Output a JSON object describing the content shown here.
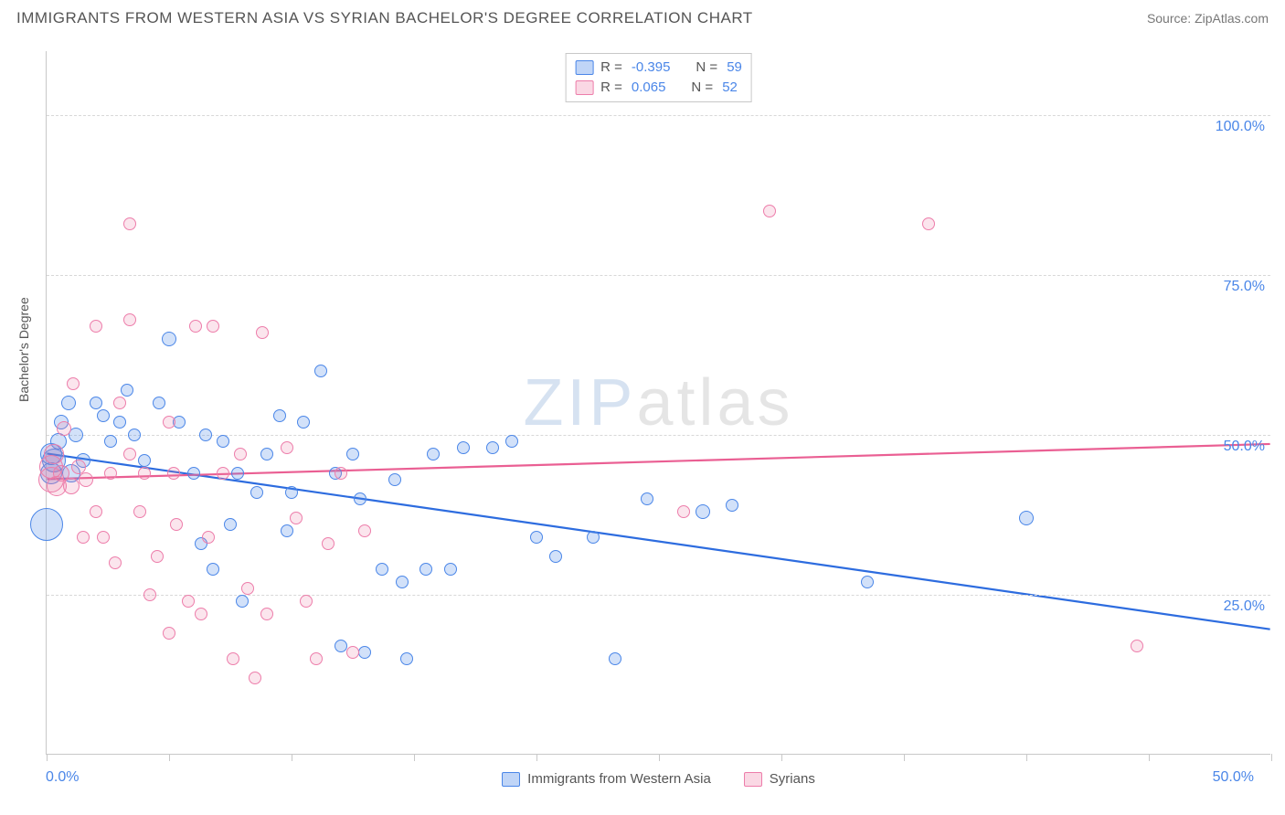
{
  "title": "IMMIGRANTS FROM WESTERN ASIA VS SYRIAN BACHELOR'S DEGREE CORRELATION CHART",
  "source": "Source: ZipAtlas.com",
  "watermark_a": "ZIP",
  "watermark_b": "atlas",
  "chart": {
    "type": "scatter-with-trend",
    "background_color": "#ffffff",
    "grid_color": "#d8d8d8",
    "axis_color": "#c8c8c8",
    "tick_label_color": "#4a86e8",
    "tick_label_fontsize": 16,
    "y_axis_label": "Bachelor's Degree",
    "y_axis_label_color": "#555555",
    "y_axis_label_fontsize": 14,
    "xlim": [
      0,
      50
    ],
    "ylim": [
      0,
      110
    ],
    "x_tick_positions": [
      0,
      5,
      10,
      15,
      20,
      25,
      30,
      35,
      40,
      45,
      50
    ],
    "x_tick_labels": {
      "start": "0.0%",
      "end": "50.0%"
    },
    "y_ticks": [
      {
        "v": 25,
        "label": "25.0%"
      },
      {
        "v": 50,
        "label": "50.0%"
      },
      {
        "v": 75,
        "label": "75.0%"
      },
      {
        "v": 100,
        "label": "100.0%"
      }
    ],
    "legend_top": {
      "r_label": "R =",
      "n_label": "N =",
      "rows": [
        {
          "color": "blue",
          "r": "-0.395",
          "n": "59"
        },
        {
          "color": "pink",
          "r": " 0.065",
          "n": "52"
        }
      ]
    },
    "legend_bottom": [
      {
        "color": "blue",
        "label": "Immigrants from Western Asia"
      },
      {
        "color": "pink",
        "label": "Syrians"
      }
    ],
    "trend_lines": [
      {
        "color": "#2d6cdf",
        "width": 2.2,
        "x1": 0,
        "y1": 47.0,
        "x2": 50,
        "y2": 19.5
      },
      {
        "color": "#ea5f93",
        "width": 2.2,
        "x1": 0,
        "y1": 43.0,
        "x2": 50,
        "y2": 48.5
      }
    ],
    "series": [
      {
        "name": "Immigrants from Western Asia",
        "color": "blue",
        "fill": "rgba(74,134,232,0.25)",
        "stroke": "#4a86e8",
        "points": [
          {
            "x": 0.0,
            "y": 36,
            "r": 18
          },
          {
            "x": 0.3,
            "y": 46,
            "r": 13
          },
          {
            "x": 0.2,
            "y": 47,
            "r": 12
          },
          {
            "x": 0.2,
            "y": 44,
            "r": 12
          },
          {
            "x": 0.5,
            "y": 49,
            "r": 9
          },
          {
            "x": 0.6,
            "y": 52,
            "r": 8
          },
          {
            "x": 0.9,
            "y": 55,
            "r": 8
          },
          {
            "x": 1.2,
            "y": 50,
            "r": 8
          },
          {
            "x": 1.5,
            "y": 46,
            "r": 8
          },
          {
            "x": 1.0,
            "y": 44,
            "r": 10
          },
          {
            "x": 2.0,
            "y": 55,
            "r": 7
          },
          {
            "x": 2.3,
            "y": 53,
            "r": 7
          },
          {
            "x": 2.6,
            "y": 49,
            "r": 7
          },
          {
            "x": 3.0,
            "y": 52,
            "r": 7
          },
          {
            "x": 3.3,
            "y": 57,
            "r": 7
          },
          {
            "x": 3.6,
            "y": 50,
            "r": 7
          },
          {
            "x": 4.0,
            "y": 46,
            "r": 7
          },
          {
            "x": 4.6,
            "y": 55,
            "r": 7
          },
          {
            "x": 5.0,
            "y": 65,
            "r": 8
          },
          {
            "x": 5.4,
            "y": 52,
            "r": 7
          },
          {
            "x": 6.0,
            "y": 44,
            "r": 7
          },
          {
            "x": 6.3,
            "y": 33,
            "r": 7
          },
          {
            "x": 6.8,
            "y": 29,
            "r": 7
          },
          {
            "x": 7.2,
            "y": 49,
            "r": 7
          },
          {
            "x": 7.8,
            "y": 44,
            "r": 7
          },
          {
            "x": 8.0,
            "y": 24,
            "r": 7
          },
          {
            "x": 8.6,
            "y": 41,
            "r": 7
          },
          {
            "x": 9.0,
            "y": 47,
            "r": 7
          },
          {
            "x": 9.5,
            "y": 53,
            "r": 7
          },
          {
            "x": 10.0,
            "y": 41,
            "r": 7
          },
          {
            "x": 10.5,
            "y": 52,
            "r": 7
          },
          {
            "x": 11.2,
            "y": 60,
            "r": 7
          },
          {
            "x": 11.8,
            "y": 44,
            "r": 7
          },
          {
            "x": 12.5,
            "y": 47,
            "r": 7
          },
          {
            "x": 12.8,
            "y": 40,
            "r": 7
          },
          {
            "x": 13.7,
            "y": 29,
            "r": 7
          },
          {
            "x": 14.2,
            "y": 43,
            "r": 7
          },
          {
            "x": 14.5,
            "y": 27,
            "r": 7
          },
          {
            "x": 14.7,
            "y": 15,
            "r": 7
          },
          {
            "x": 15.5,
            "y": 29,
            "r": 7
          },
          {
            "x": 15.8,
            "y": 47,
            "r": 7
          },
          {
            "x": 16.5,
            "y": 29,
            "r": 7
          },
          {
            "x": 17.0,
            "y": 48,
            "r": 7
          },
          {
            "x": 18.2,
            "y": 48,
            "r": 7
          },
          {
            "x": 19.0,
            "y": 49,
            "r": 7
          },
          {
            "x": 20.0,
            "y": 34,
            "r": 7
          },
          {
            "x": 20.8,
            "y": 31,
            "r": 7
          },
          {
            "x": 22.3,
            "y": 34,
            "r": 7
          },
          {
            "x": 23.2,
            "y": 15,
            "r": 7
          },
          {
            "x": 24.5,
            "y": 40,
            "r": 7
          },
          {
            "x": 26.8,
            "y": 38,
            "r": 8
          },
          {
            "x": 28.0,
            "y": 39,
            "r": 7
          },
          {
            "x": 33.5,
            "y": 27,
            "r": 7
          },
          {
            "x": 40.0,
            "y": 37,
            "r": 8
          },
          {
            "x": 12.0,
            "y": 17,
            "r": 7
          },
          {
            "x": 9.8,
            "y": 35,
            "r": 7
          },
          {
            "x": 13.0,
            "y": 16,
            "r": 7
          },
          {
            "x": 6.5,
            "y": 50,
            "r": 7
          },
          {
            "x": 7.5,
            "y": 36,
            "r": 7
          }
        ]
      },
      {
        "name": "Syrians",
        "color": "pink",
        "fill": "rgba(237,125,166,0.20)",
        "stroke": "#ed7daa",
        "points": [
          {
            "x": 0.2,
            "y": 45,
            "r": 13
          },
          {
            "x": 0.2,
            "y": 43,
            "r": 14
          },
          {
            "x": 0.3,
            "y": 47,
            "r": 11
          },
          {
            "x": 0.4,
            "y": 42,
            "r": 11
          },
          {
            "x": 0.6,
            "y": 44,
            "r": 9
          },
          {
            "x": 1.0,
            "y": 42,
            "r": 9
          },
          {
            "x": 1.3,
            "y": 45,
            "r": 8
          },
          {
            "x": 1.6,
            "y": 43,
            "r": 8
          },
          {
            "x": 0.7,
            "y": 51,
            "r": 8
          },
          {
            "x": 1.1,
            "y": 58,
            "r": 7
          },
          {
            "x": 2.0,
            "y": 38,
            "r": 7
          },
          {
            "x": 2.3,
            "y": 34,
            "r": 7
          },
          {
            "x": 2.6,
            "y": 44,
            "r": 7
          },
          {
            "x": 3.0,
            "y": 55,
            "r": 7
          },
          {
            "x": 3.4,
            "y": 47,
            "r": 7
          },
          {
            "x": 3.4,
            "y": 83,
            "r": 7
          },
          {
            "x": 3.4,
            "y": 68,
            "r": 7
          },
          {
            "x": 4.0,
            "y": 44,
            "r": 7
          },
          {
            "x": 4.5,
            "y": 31,
            "r": 7
          },
          {
            "x": 5.0,
            "y": 19,
            "r": 7
          },
          {
            "x": 5.3,
            "y": 36,
            "r": 7
          },
          {
            "x": 5.8,
            "y": 24,
            "r": 7
          },
          {
            "x": 6.1,
            "y": 67,
            "r": 7
          },
          {
            "x": 6.3,
            "y": 22,
            "r": 7
          },
          {
            "x": 6.6,
            "y": 34,
            "r": 7
          },
          {
            "x": 6.8,
            "y": 67,
            "r": 7
          },
          {
            "x": 7.2,
            "y": 44,
            "r": 7
          },
          {
            "x": 7.6,
            "y": 15,
            "r": 7
          },
          {
            "x": 7.9,
            "y": 47,
            "r": 7
          },
          {
            "x": 8.2,
            "y": 26,
            "r": 7
          },
          {
            "x": 8.5,
            "y": 12,
            "r": 7
          },
          {
            "x": 9.0,
            "y": 22,
            "r": 7
          },
          {
            "x": 9.8,
            "y": 48,
            "r": 7
          },
          {
            "x": 10.2,
            "y": 37,
            "r": 7
          },
          {
            "x": 10.6,
            "y": 24,
            "r": 7
          },
          {
            "x": 11.0,
            "y": 15,
            "r": 7
          },
          {
            "x": 11.5,
            "y": 33,
            "r": 7
          },
          {
            "x": 12.0,
            "y": 44,
            "r": 7
          },
          {
            "x": 12.5,
            "y": 16,
            "r": 7
          },
          {
            "x": 13.0,
            "y": 35,
            "r": 7
          },
          {
            "x": 5.0,
            "y": 52,
            "r": 7
          },
          {
            "x": 2.0,
            "y": 67,
            "r": 7
          },
          {
            "x": 4.2,
            "y": 25,
            "r": 7
          },
          {
            "x": 5.2,
            "y": 44,
            "r": 7
          },
          {
            "x": 3.8,
            "y": 38,
            "r": 7
          },
          {
            "x": 8.8,
            "y": 66,
            "r": 7
          },
          {
            "x": 26.0,
            "y": 38,
            "r": 7
          },
          {
            "x": 29.5,
            "y": 85,
            "r": 7
          },
          {
            "x": 36.0,
            "y": 83,
            "r": 7
          },
          {
            "x": 44.5,
            "y": 17,
            "r": 7
          },
          {
            "x": 1.5,
            "y": 34,
            "r": 7
          },
          {
            "x": 2.8,
            "y": 30,
            "r": 7
          }
        ]
      }
    ]
  }
}
